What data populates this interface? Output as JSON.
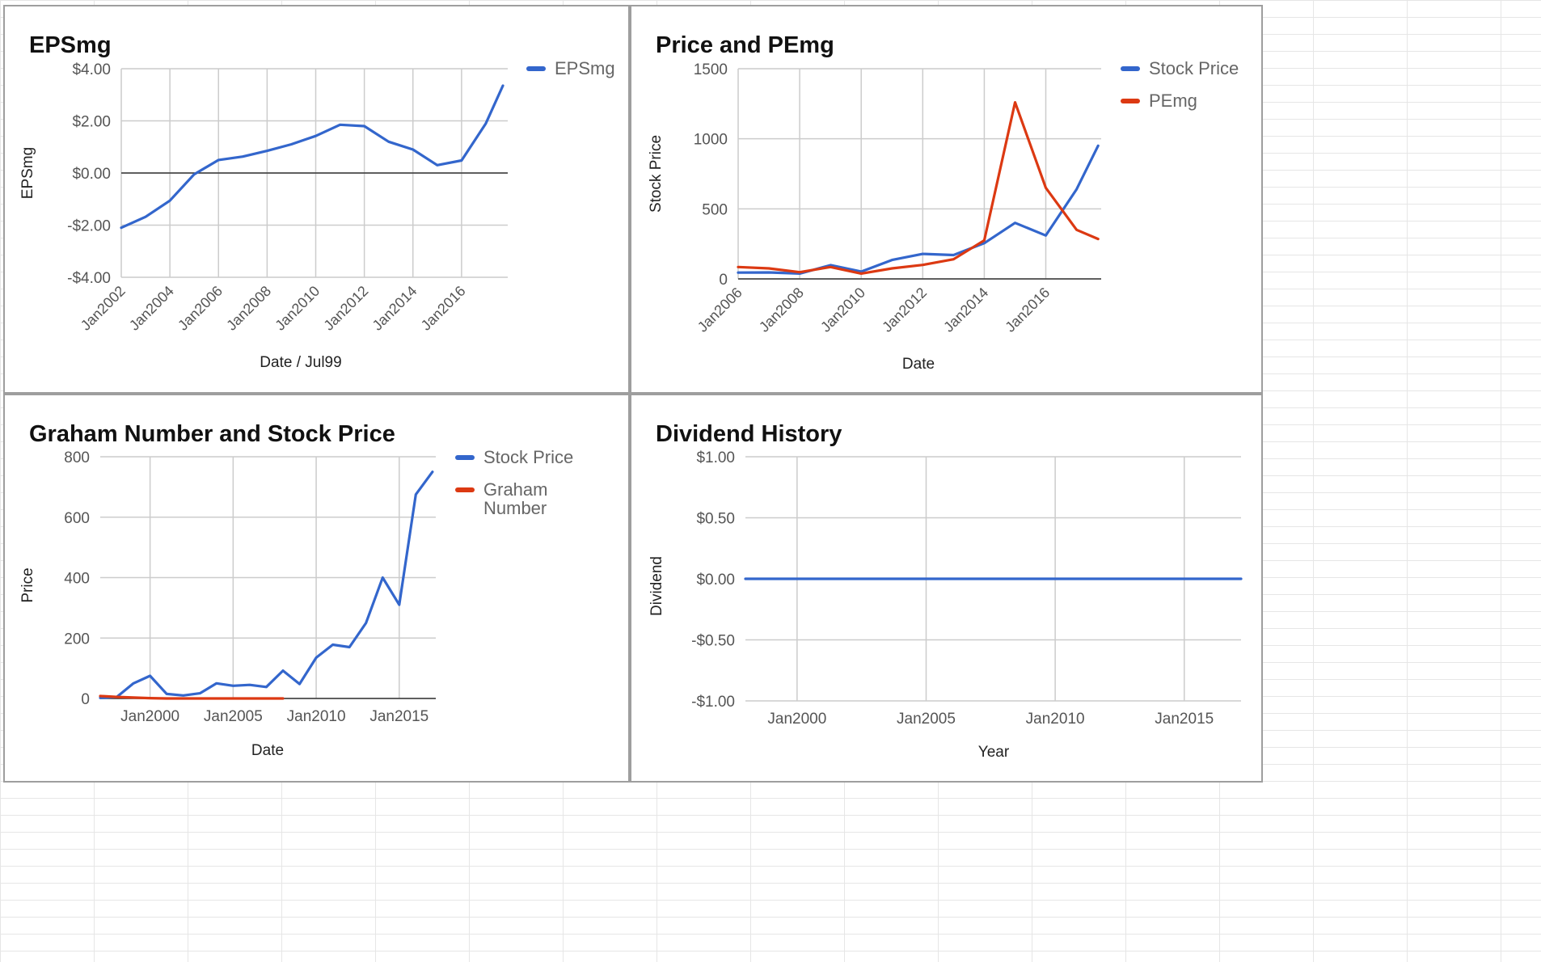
{
  "colors": {
    "blue": "#3366cc",
    "red": "#dc3912",
    "grid": "#cccccc",
    "zero": "#333333",
    "text": "#555555"
  },
  "chart_data": [
    {
      "type": "line",
      "title": "EPSmg",
      "xlabel": "Date / Jul99",
      "ylabel": "EPSmg",
      "x_ticks": [
        "Jan2002",
        "Jan2004",
        "Jan2006",
        "Jan2008",
        "Jan2010",
        "Jan2012",
        "Jan2014",
        "Jan2016"
      ],
      "y_ticks": [
        "$4.00",
        "$2.00",
        "$0.00",
        "-$2.00",
        "-$4.00"
      ],
      "ylim": [
        -4,
        4
      ],
      "xlim": [
        2002.0,
        2017.9
      ],
      "legend_position": "right",
      "series": [
        {
          "name": "EPSmg",
          "color": "#3366cc",
          "x": [
            2002.0,
            2003.0,
            2004.0,
            2005.0,
            2006.0,
            2007.0,
            2008.0,
            2009.0,
            2010.0,
            2011.0,
            2012.0,
            2013.0,
            2014.0,
            2015.0,
            2016.0,
            2017.0,
            2017.7
          ],
          "y": [
            -2.1,
            -1.68,
            -1.06,
            -0.05,
            0.5,
            0.63,
            0.85,
            1.1,
            1.42,
            1.85,
            1.8,
            1.2,
            0.9,
            0.3,
            0.48,
            1.9,
            3.35
          ]
        }
      ]
    },
    {
      "type": "line",
      "title": "Price and PEmg",
      "xlabel": "Date",
      "ylabel": "Stock Price",
      "x_ticks": [
        "Jan2006",
        "Jan2008",
        "Jan2010",
        "Jan2012",
        "Jan2014",
        "Jan2016"
      ],
      "y_ticks": [
        "1500",
        "1000",
        "500",
        "0"
      ],
      "ylim": [
        0,
        1500
      ],
      "xlim": [
        2006.0,
        2017.8
      ],
      "legend_position": "right",
      "series": [
        {
          "name": "Stock Price",
          "color": "#3366cc",
          "x": [
            2006.0,
            2007.0,
            2008.0,
            2009.0,
            2010.0,
            2011.0,
            2012.0,
            2013.0,
            2014.0,
            2015.0,
            2016.0,
            2017.0,
            2017.7
          ],
          "y": [
            45,
            46,
            38,
            98,
            52,
            135,
            178,
            170,
            255,
            400,
            310,
            640,
            950
          ]
        },
        {
          "name": "PEmg",
          "color": "#dc3912",
          "x": [
            2006.0,
            2007.0,
            2008.0,
            2009.0,
            2010.0,
            2011.0,
            2012.0,
            2013.0,
            2014.0,
            2015.0,
            2016.0,
            2017.0,
            2017.7
          ],
          "y": [
            85,
            75,
            48,
            85,
            38,
            75,
            100,
            140,
            275,
            1260,
            650,
            350,
            285
          ]
        }
      ]
    },
    {
      "type": "line",
      "title": "Graham Number and Stock Price",
      "xlabel": "Date",
      "ylabel": "Price",
      "x_ticks": [
        "Jan2000",
        "Jan2005",
        "Jan2010",
        "Jan2015"
      ],
      "y_ticks": [
        "800",
        "600",
        "400",
        "200",
        "0"
      ],
      "ylim": [
        0,
        800
      ],
      "xlim": [
        1997.0,
        2017.2
      ],
      "legend_position": "right",
      "series": [
        {
          "name": "Stock Price",
          "color": "#3366cc",
          "x": [
            1997.0,
            1998.0,
            1999.0,
            2000.0,
            2001.0,
            2002.0,
            2003.0,
            2004.0,
            2005.0,
            2006.0,
            2007.0,
            2008.0,
            2009.0,
            2010.0,
            2011.0,
            2012.0,
            2013.0,
            2014.0,
            2015.0,
            2016.0,
            2017.0
          ],
          "y": [
            2,
            5,
            50,
            75,
            15,
            10,
            17,
            50,
            42,
            45,
            38,
            92,
            48,
            135,
            178,
            170,
            250,
            400,
            310,
            675,
            750
          ]
        },
        {
          "name": "Graham Number",
          "color": "#dc3912",
          "x": [
            1997.0,
            1998.0,
            1999.0,
            2000.0,
            2001.0,
            2002.0,
            2003.0,
            2004.0,
            2005.0,
            2006.0,
            2007.0,
            2008.0
          ],
          "y": [
            8,
            5,
            3,
            1,
            0,
            0,
            0,
            0,
            0,
            0,
            0,
            0
          ]
        }
      ]
    },
    {
      "type": "line",
      "title": "Dividend History",
      "xlabel": "Year",
      "ylabel": "Dividend",
      "x_ticks": [
        "Jan2000",
        "Jan2005",
        "Jan2010",
        "Jan2015"
      ],
      "y_ticks": [
        "$1.00",
        "$0.50",
        "$0.00",
        "-$0.50",
        "-$1.00"
      ],
      "ylim": [
        -1,
        1
      ],
      "xlim": [
        1998.0,
        2017.2
      ],
      "legend_position": "none",
      "series": [
        {
          "name": "",
          "color": "#3366cc",
          "x": [
            1998.0,
            2017.2
          ],
          "y": [
            0,
            0
          ]
        }
      ]
    }
  ]
}
